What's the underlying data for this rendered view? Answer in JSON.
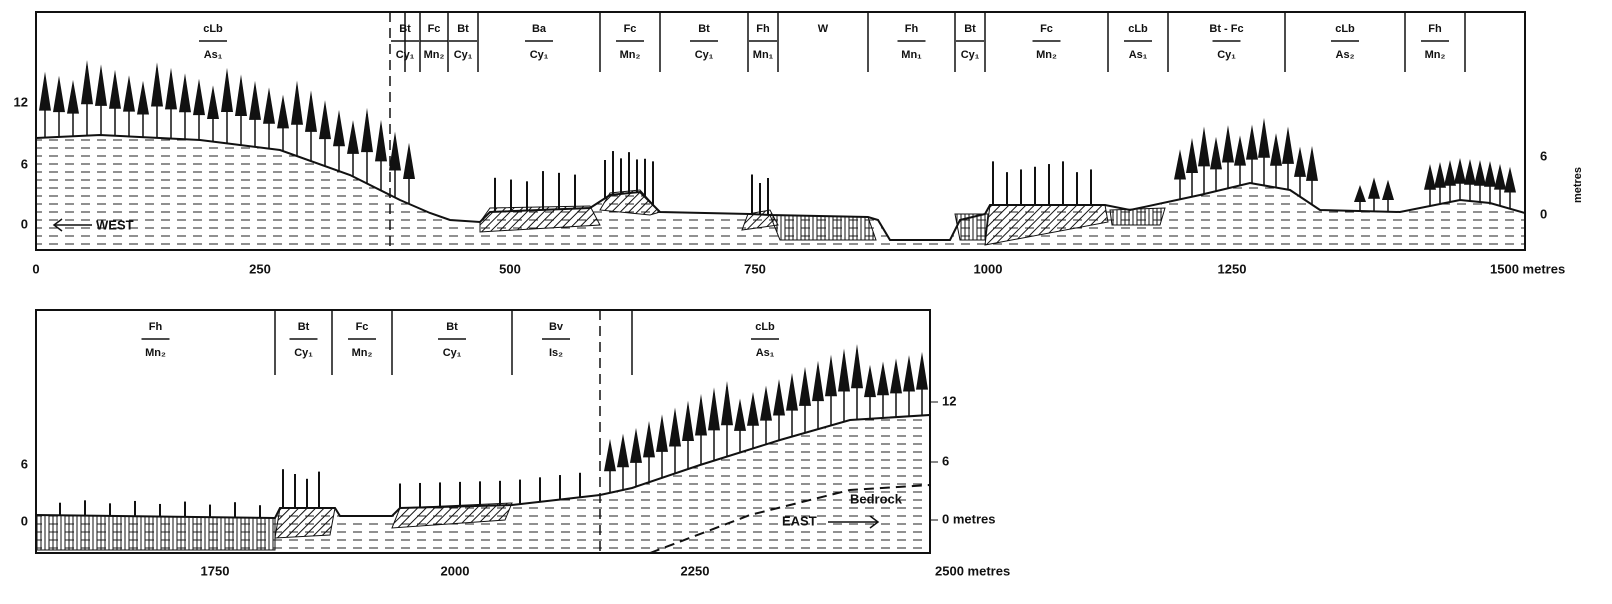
{
  "top_panel": {
    "units": [
      {
        "top": "cLb",
        "bottom": "As₁"
      },
      {
        "top": "Bt",
        "bottom": "Cy₁"
      },
      {
        "top": "Fc",
        "bottom": "Mn₂"
      },
      {
        "top": "Bt",
        "bottom": "Cy₁"
      },
      {
        "top": "Ba",
        "bottom": "Cy₁"
      },
      {
        "top": "Fc",
        "bottom": "Mn₂"
      },
      {
        "top": "Bt",
        "bottom": "Cy₁"
      },
      {
        "top": "Fh",
        "bottom": "Mn₁"
      },
      {
        "top": "W"
      },
      {
        "top": "Fh",
        "bottom": "Mn₁"
      },
      {
        "top": "Bt",
        "bottom": "Cy₁"
      },
      {
        "top": "Fc",
        "bottom": "Mn₂"
      },
      {
        "top": "cLb",
        "bottom": "As₁"
      },
      {
        "top": "Bt - Fc",
        "bottom": "Cy₁"
      },
      {
        "top": "cLb",
        "bottom": "As₂"
      },
      {
        "top": "Fh",
        "bottom": "Mn₂"
      }
    ],
    "x_ticks": [
      "0",
      "250",
      "500",
      "750",
      "1000",
      "1250",
      "1500 metres"
    ],
    "y_left": [
      "12",
      "6",
      "0"
    ],
    "y_right": [
      "6",
      "0"
    ],
    "y_unit": "metres",
    "direction": "WEST"
  },
  "bottom_panel": {
    "units": [
      {
        "top": "Fh",
        "bottom": "Mn₂"
      },
      {
        "top": "Bt",
        "bottom": "Cy₁"
      },
      {
        "top": "Fc",
        "bottom": "Mn₂"
      },
      {
        "top": "Bt",
        "bottom": "Cy₁"
      },
      {
        "top": "Bv",
        "bottom": "Is₂"
      },
      {
        "top": "cLb",
        "bottom": "As₁"
      }
    ],
    "x_ticks": [
      "1750",
      "2000",
      "2250",
      "2500 metres"
    ],
    "y_left": [
      "6",
      "0"
    ],
    "y_right": [
      "12",
      "6",
      "0 metres"
    ],
    "direction": "EAST",
    "bedrock": "Bedrock"
  }
}
